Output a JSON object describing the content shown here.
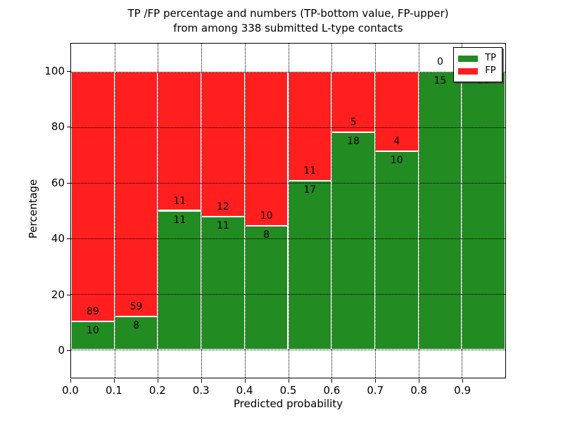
{
  "title": {
    "line1": "TP /FP percentage and numbers (TP-bottom value, FP-upper)",
    "line2": "from among 338 submitted L-type contacts"
  },
  "axes": {
    "ylabel": "Percentage",
    "xlabel": "Predicted probability",
    "y_ticks": [
      0,
      20,
      40,
      60,
      80,
      100
    ],
    "x_ticks": [
      "0.0",
      "0.1",
      "0.2",
      "0.3",
      "0.4",
      "0.5",
      "0.6",
      "0.7",
      "0.8",
      "0.9"
    ],
    "ylim": [
      -10,
      110
    ],
    "xlim": [
      0,
      1
    ],
    "grid": "dotted"
  },
  "legend": {
    "position": "upper-right",
    "items": [
      {
        "label": "TP",
        "color": "#228b22"
      },
      {
        "label": "FP",
        "color": "#ff1f1f"
      }
    ]
  },
  "colors": {
    "tp_green": "#228b22",
    "fp_red": "#ff1f1f",
    "bar_edge": "#ffffff",
    "background": "#ffffff"
  },
  "chart_data": {
    "type": "bar",
    "stacked": true,
    "normalized_to_percent": true,
    "total_contacts": 338,
    "title": "TP /FP percentage and numbers (TP-bottom value, FP-upper) from among 338 submitted L-type contacts",
    "xlabel": "Predicted probability",
    "ylabel": "Percentage",
    "bin_width": 0.1,
    "categories": [
      "0.0-0.1",
      "0.1-0.2",
      "0.2-0.3",
      "0.3-0.4",
      "0.4-0.5",
      "0.5-0.6",
      "0.6-0.7",
      "0.7-0.8",
      "0.8-0.9",
      "0.9-1.0"
    ],
    "series": [
      {
        "name": "TP",
        "color": "#228b22",
        "values": [
          10,
          8,
          11,
          11,
          8,
          17,
          18,
          10,
          15,
          29
        ]
      },
      {
        "name": "FP",
        "color": "#ff1f1f",
        "values": [
          89,
          59,
          11,
          12,
          10,
          11,
          5,
          4,
          0,
          0
        ]
      }
    ],
    "tp_percent_per_bin": [
      10.1,
      11.9,
      50.0,
      47.8,
      44.4,
      60.7,
      78.3,
      71.4,
      100.0,
      100.0
    ],
    "ylim": [
      -10,
      110
    ],
    "xlim": [
      0,
      1
    ],
    "legend_position": "upper right"
  }
}
